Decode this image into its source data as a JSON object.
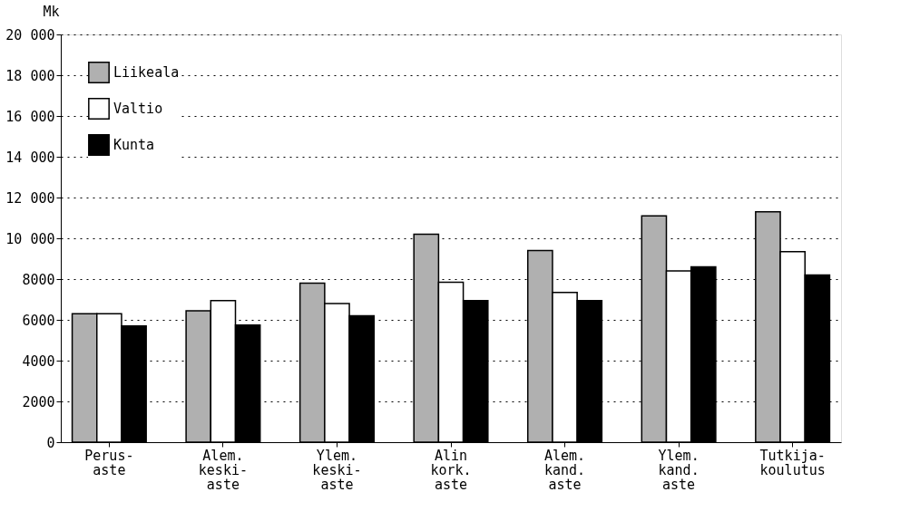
{
  "chart_data": {
    "type": "bar",
    "ylabel": "Mk",
    "categories": [
      "Perus-\naste",
      "Alem.\nkeski-\naste",
      "Ylem.\nkeski-\naste",
      "Alin\nkork.\naste",
      "Alem.\nkand.\naste",
      "Ylem.\nkand.\naste",
      "Tutkija-\nkoulutus"
    ],
    "series": [
      {
        "name": "Liikeala",
        "color": "#b0b0b0",
        "values": [
          6300,
          6450,
          7800,
          10200,
          9400,
          11100,
          11300
        ]
      },
      {
        "name": "Valtio",
        "color": "#ffffff",
        "values": [
          6300,
          6950,
          6800,
          7850,
          7350,
          8400,
          9350
        ]
      },
      {
        "name": "Kunta",
        "color": "#000000",
        "values": [
          5700,
          5750,
          6200,
          6950,
          6950,
          8600,
          8200
        ]
      }
    ],
    "ylim": [
      0,
      20000
    ],
    "yticks": [
      0,
      {
        "value": 2000,
        "label": "2000"
      },
      {
        "value": 4000,
        "label": "4000"
      },
      {
        "value": 6000,
        "label": "6000"
      },
      {
        "value": 8000,
        "label": "8000"
      },
      {
        "value": 10000,
        "label": "10 000"
      },
      {
        "value": 12000,
        "label": "12 000"
      },
      {
        "value": 14000,
        "label": "14 000"
      },
      {
        "value": 16000,
        "label": "16 000"
      },
      {
        "value": 18000,
        "label": "18 000"
      },
      {
        "value": 20000,
        "label": "20 000"
      }
    ],
    "grid": "y",
    "legend": "top left"
  }
}
